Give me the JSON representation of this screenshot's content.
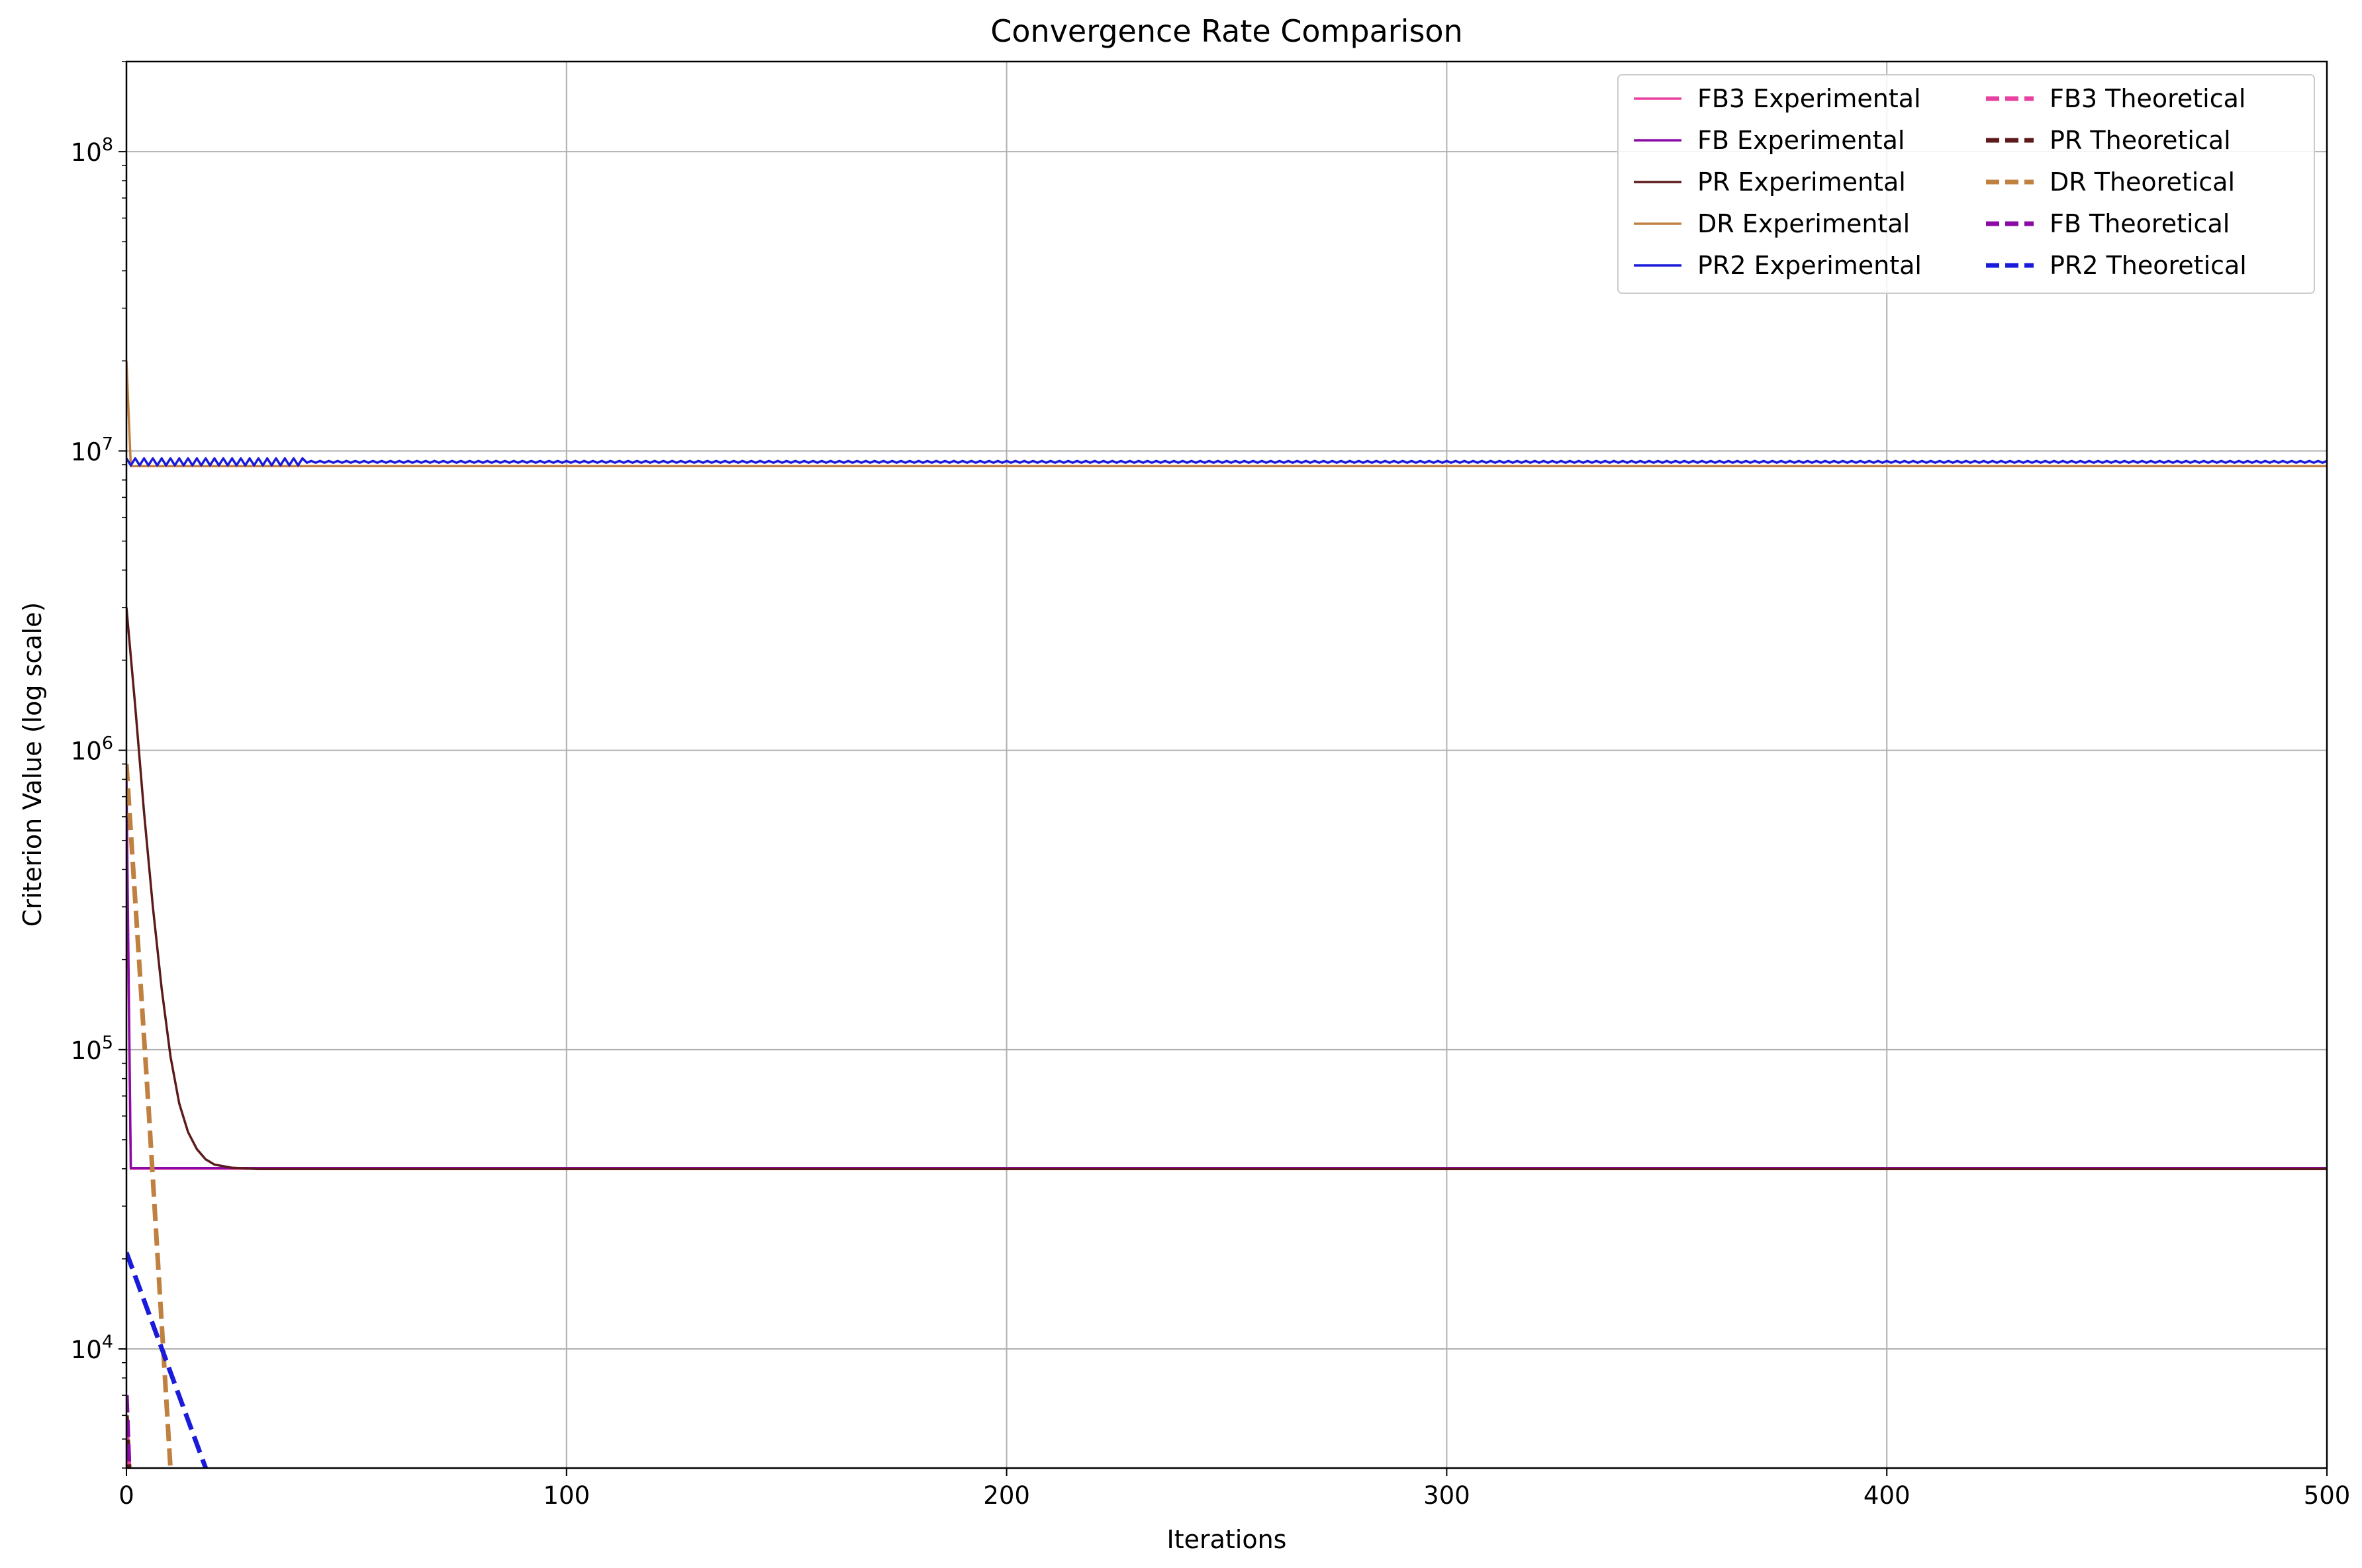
{
  "chart_data": {
    "type": "line",
    "title": "Convergence Rate Comparison",
    "xlabel": "Iterations",
    "ylabel": "Criterion Value (log scale)",
    "xlim": [
      0,
      500
    ],
    "ylim": [
      4000,
      200000000
    ],
    "yscale": "log",
    "grid": true,
    "legend_position": "top-right",
    "legend_columns": 2,
    "x_ticks": [
      0,
      100,
      200,
      300,
      400,
      500
    ],
    "y_ticks": [
      {
        "value": 10000,
        "base": "10",
        "exp": "4"
      },
      {
        "value": 100000,
        "base": "10",
        "exp": "5"
      },
      {
        "value": 1000000,
        "base": "10",
        "exp": "6"
      },
      {
        "value": 10000000,
        "base": "10",
        "exp": "7"
      },
      {
        "value": 100000000,
        "base": "10",
        "exp": "8"
      }
    ],
    "series": [
      {
        "name": "FB3 Experimental",
        "color": "#e8409f",
        "style": "solid",
        "points": [
          [
            0,
            600000
          ],
          [
            1,
            40000
          ],
          [
            500,
            40000
          ]
        ]
      },
      {
        "name": "FB Experimental",
        "color": "#8b0aa5",
        "style": "solid",
        "points": [
          [
            0,
            800000
          ],
          [
            1,
            40200
          ],
          [
            500,
            40200
          ]
        ]
      },
      {
        "name": "PR Experimental",
        "color": "#5c1a1b",
        "style": "solid",
        "points": [
          [
            0,
            3000000
          ],
          [
            2,
            1400000
          ],
          [
            4,
            620000
          ],
          [
            6,
            300000
          ],
          [
            8,
            160000
          ],
          [
            10,
            95000
          ],
          [
            12,
            66000
          ],
          [
            14,
            53000
          ],
          [
            16,
            46500
          ],
          [
            18,
            43000
          ],
          [
            20,
            41300
          ],
          [
            24,
            40300
          ],
          [
            30,
            39900
          ],
          [
            500,
            39900
          ]
        ]
      },
      {
        "name": "DR Experimental",
        "color": "#c08040",
        "style": "solid",
        "points": [
          [
            0,
            20000000
          ],
          [
            1,
            8900000
          ],
          [
            500,
            8900000
          ]
        ]
      },
      {
        "name": "PR2 Experimental",
        "color": "#1a1adb",
        "style": "zigzag",
        "center": 9200000,
        "amplitude": 250000,
        "points": [
          [
            0,
            9200000
          ],
          [
            500,
            9200000
          ]
        ]
      },
      {
        "name": "FB3 Theoretical",
        "color": "#e8409f",
        "style": "dashed",
        "points": [
          [
            0,
            5500
          ],
          [
            0.6,
            4000
          ]
        ]
      },
      {
        "name": "PR Theoretical",
        "color": "#5c1a1b",
        "style": "dashed",
        "points": [
          [
            0,
            6000
          ],
          [
            0.6,
            4000
          ]
        ]
      },
      {
        "name": "DR Theoretical",
        "color": "#c08040",
        "style": "dashed",
        "points": [
          [
            0,
            900000
          ],
          [
            5,
            65000
          ],
          [
            10,
            4000
          ]
        ]
      },
      {
        "name": "FB Theoretical",
        "color": "#8b0aa5",
        "style": "dashed",
        "points": [
          [
            0,
            7000
          ],
          [
            0.6,
            4000
          ]
        ]
      },
      {
        "name": "PR2 Theoretical",
        "color": "#1a1adb",
        "style": "dashed",
        "points": [
          [
            0,
            21000
          ],
          [
            18,
            4000
          ]
        ]
      }
    ]
  }
}
